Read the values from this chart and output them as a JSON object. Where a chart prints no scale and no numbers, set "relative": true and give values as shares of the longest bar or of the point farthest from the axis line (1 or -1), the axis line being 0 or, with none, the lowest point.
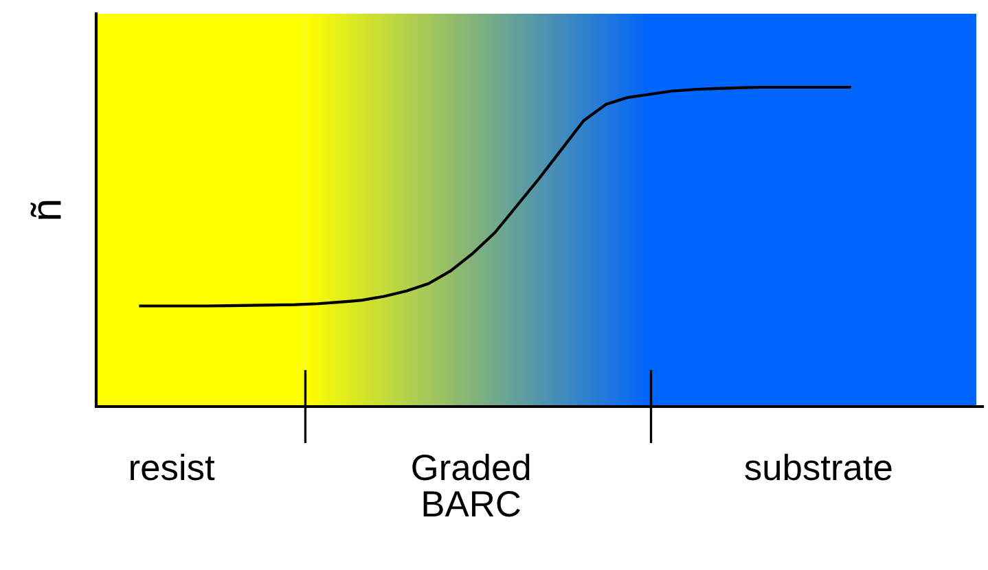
{
  "chart_data": {
    "type": "line",
    "relative": true,
    "ylabel": "ñ",
    "annotations": [
      "resist",
      "Graded\nBARC",
      "substrate"
    ],
    "categories": [
      null,
      null,
      null,
      null,
      null,
      null,
      null,
      null,
      null,
      null,
      null,
      null,
      null,
      null,
      null,
      null,
      null,
      null,
      null,
      null,
      null,
      null,
      null,
      null,
      null,
      null,
      null,
      null,
      null,
      null,
      null,
      null,
      null,
      null,
      null,
      null,
      null,
      null,
      null,
      null,
      null
    ],
    "series": [
      {
        "color": "#000000",
        "values": [
          null,
          null,
          0.315,
          0.315,
          0.315,
          0.315,
          0.316,
          0.317,
          0.318,
          0.319,
          0.322,
          0.327,
          0.333,
          0.345,
          0.362,
          0.385,
          0.425,
          0.48,
          0.545,
          0.63,
          0.715,
          0.805,
          0.895,
          0.946,
          0.968,
          0.978,
          0.988,
          0.993,
          0.996,
          0.998,
          1.0,
          1.0,
          1.0,
          1.0,
          1.0,
          null,
          null,
          null,
          null,
          null,
          null
        ]
      }
    ],
    "grid": false,
    "legend": false,
    "marker": "none",
    "line_style": "solid"
  }
}
